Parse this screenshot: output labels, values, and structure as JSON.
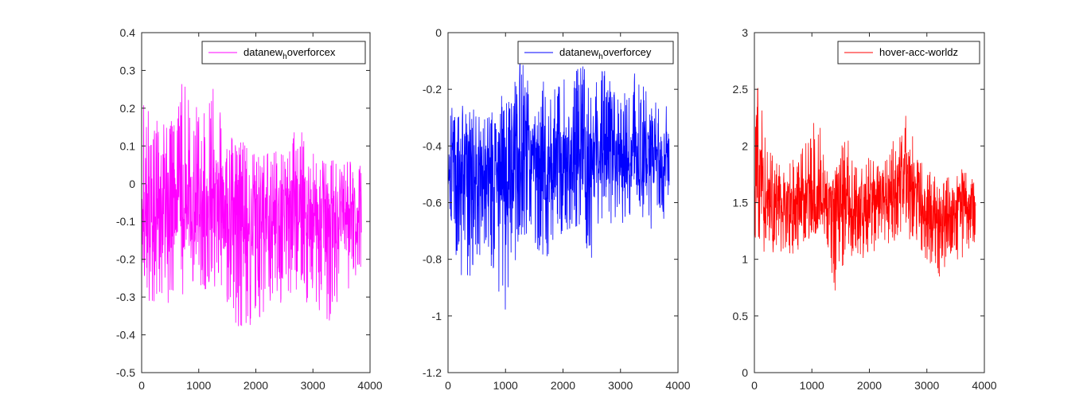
{
  "figure": {
    "background": "#ffffff",
    "axis_color": "#262626",
    "legend_border": "#262626"
  },
  "chart_data": [
    {
      "type": "line",
      "xlim": [
        0,
        4000
      ],
      "ylim": [
        -0.5,
        0.4
      ],
      "xticks": [
        "0",
        "1000",
        "2000",
        "3000",
        "4000"
      ],
      "yticks": [
        "-0.5",
        "-0.4",
        "-0.3",
        "-0.2",
        "-0.1",
        "0",
        "0.1",
        "0.2",
        "0.3",
        "0.4"
      ],
      "grid": false,
      "legend_position": "top-right",
      "series": [
        {
          "name": "datanew_hoverforcex",
          "name_parts": [
            "datanew",
            "h",
            "overforcex"
          ],
          "color": "#ff00ff",
          "n": 3850,
          "summary": {
            "typical_min": -0.27,
            "typical_max": 0.14,
            "peak_max": 0.31,
            "peak_max_at": 760,
            "peak_min": -0.42,
            "peak_min_at": 1850
          },
          "envelope": {
            "x": [
              0,
              30,
              80,
              150,
              300,
              450,
              600,
              760,
              900,
              1100,
              1250,
              1500,
              1850,
              2000,
              2300,
              2500,
              2650,
              3000,
              3300,
              3600,
              3850
            ],
            "low": [
              -0.18,
              -0.22,
              -0.28,
              -0.32,
              -0.3,
              -0.4,
              -0.27,
              -0.3,
              -0.27,
              -0.28,
              -0.27,
              -0.33,
              -0.42,
              -0.37,
              -0.3,
              -0.34,
              -0.3,
              -0.32,
              -0.37,
              -0.28,
              -0.25
            ],
            "high": [
              0.0,
              0.23,
              0.21,
              0.19,
              0.16,
              0.17,
              0.19,
              0.31,
              0.2,
              0.21,
              0.28,
              0.13,
              0.11,
              0.09,
              0.08,
              0.1,
              0.18,
              0.08,
              0.06,
              0.07,
              0.05
            ],
            "mid": [
              -0.08,
              -0.06,
              -0.06,
              -0.07,
              -0.07,
              -0.06,
              -0.05,
              -0.04,
              -0.05,
              -0.05,
              -0.05,
              -0.07,
              -0.09,
              -0.09,
              -0.09,
              -0.08,
              -0.07,
              -0.09,
              -0.1,
              -0.08,
              -0.1
            ]
          }
        }
      ]
    },
    {
      "type": "line",
      "xlim": [
        0,
        4000
      ],
      "ylim": [
        -1.2,
        0
      ],
      "xticks": [
        "0",
        "1000",
        "2000",
        "3000",
        "4000"
      ],
      "yticks": [
        "-1.2",
        "-1",
        "-0.8",
        "-0.6",
        "-0.4",
        "-0.2",
        "0"
      ],
      "grid": false,
      "legend_position": "top-right",
      "series": [
        {
          "name": "datanew_hoverforcey",
          "name_parts": [
            "datanew",
            "h",
            "overforcey"
          ],
          "color": "#0000ff",
          "n": 3850,
          "summary": {
            "start_value": -0.03,
            "typical_min": -0.62,
            "typical_max": -0.27,
            "peak_max": -0.1,
            "peak_min": -1.07,
            "peak_min_at": 920
          },
          "envelope": {
            "x": [
              0,
              20,
              100,
              300,
              500,
              700,
              920,
              1100,
              1300,
              1500,
              1800,
              2000,
              2300,
              2500,
              2700,
              3000,
              3300,
              3500,
              3850
            ],
            "low": [
              -0.55,
              -0.6,
              -0.77,
              -0.9,
              -0.8,
              -0.75,
              -1.07,
              -0.85,
              -0.72,
              -0.75,
              -0.82,
              -0.7,
              -0.68,
              -0.82,
              -0.65,
              -0.7,
              -0.62,
              -0.7,
              -0.64
            ],
            "high": [
              -0.03,
              -0.22,
              -0.27,
              -0.25,
              -0.28,
              -0.3,
              -0.22,
              -0.15,
              -0.1,
              -0.14,
              -0.2,
              -0.17,
              -0.1,
              -0.18,
              -0.12,
              -0.25,
              -0.1,
              -0.24,
              -0.26
            ],
            "mid": [
              -0.5,
              -0.48,
              -0.48,
              -0.49,
              -0.5,
              -0.5,
              -0.52,
              -0.48,
              -0.44,
              -0.45,
              -0.47,
              -0.46,
              -0.43,
              -0.45,
              -0.44,
              -0.45,
              -0.43,
              -0.45,
              -0.46
            ]
          }
        }
      ]
    },
    {
      "type": "line",
      "xlim": [
        0,
        4000
      ],
      "ylim": [
        0,
        3
      ],
      "xticks": [
        "0",
        "1000",
        "2000",
        "3000",
        "4000"
      ],
      "yticks": [
        "0",
        "0.5",
        "1",
        "1.5",
        "2",
        "2.5",
        "3"
      ],
      "grid": false,
      "legend_position": "top-right",
      "series": [
        {
          "name": "hover-acc-worldz",
          "name_parts": [
            "hover-acc-worldz",
            "",
            ""
          ],
          "color": "#ff0000",
          "n": 3850,
          "summary": {
            "start_value": 0.2,
            "typical_min": 1.15,
            "typical_max": 1.9,
            "peak_max": 2.6,
            "peak_max_at": 70,
            "peak_min": 0.69,
            "peak_min_at": 1400
          },
          "envelope": {
            "x": [
              0,
              15,
              70,
              200,
              400,
              600,
              800,
              1000,
              1100,
              1250,
              1400,
              1600,
              1800,
              2000,
              2200,
              2400,
              2600,
              2650,
              2800,
              3000,
              3200,
              3400,
              3600,
              3850
            ],
            "low": [
              0.2,
              1.1,
              1.2,
              1.0,
              1.1,
              1.0,
              1.1,
              1.2,
              1.2,
              1.2,
              0.69,
              1.05,
              1.0,
              1.0,
              1.1,
              1.15,
              1.2,
              1.2,
              1.1,
              1.0,
              0.82,
              1.0,
              1.0,
              1.15
            ],
            "high": [
              1.7,
              2.2,
              2.6,
              2.0,
              1.85,
              1.85,
              2.0,
              2.1,
              2.42,
              1.8,
              1.85,
              2.1,
              1.8,
              1.9,
              1.8,
              2.05,
              2.1,
              2.44,
              1.95,
              1.8,
              1.7,
              1.75,
              1.8,
              1.7
            ],
            "mid": [
              1.0,
              1.6,
              1.8,
              1.6,
              1.5,
              1.5,
              1.5,
              1.6,
              1.6,
              1.5,
              1.5,
              1.5,
              1.45,
              1.5,
              1.55,
              1.6,
              1.7,
              1.7,
              1.55,
              1.45,
              1.35,
              1.45,
              1.5,
              1.4
            ]
          }
        }
      ]
    }
  ]
}
